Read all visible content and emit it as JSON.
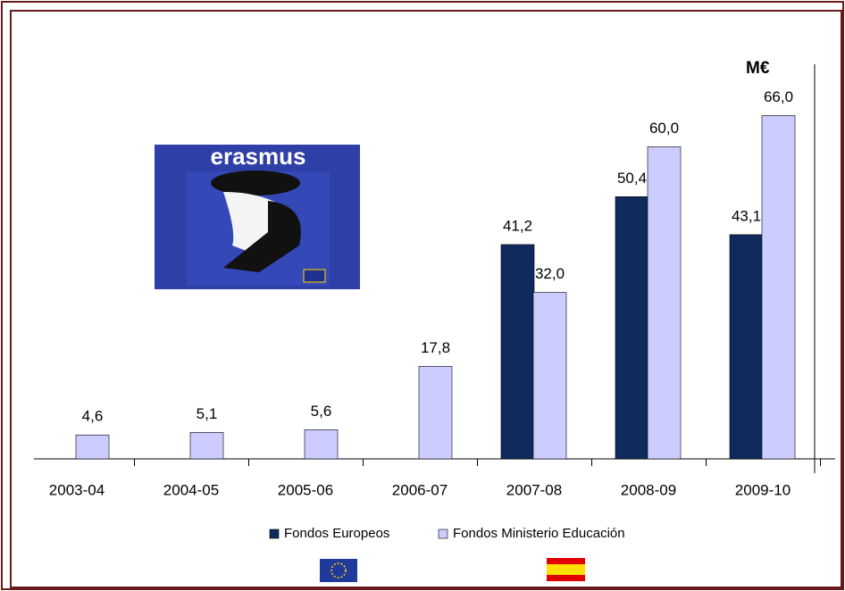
{
  "chart_data": {
    "type": "bar",
    "unit_label": "M€",
    "logo_text": "erasmus",
    "categories": [
      "2003-04",
      "2004-05",
      "2005-06",
      "2006-07",
      "2007-08",
      "2008-09",
      "2009-10"
    ],
    "series": [
      {
        "name": "Fondos Europeos",
        "color": "#0f2a5c",
        "values": [
          null,
          null,
          null,
          null,
          41.2,
          50.4,
          43.1
        ],
        "value_labels": [
          null,
          null,
          null,
          null,
          "41,2",
          "50,4",
          "43,1"
        ]
      },
      {
        "name": "Fondos Ministerio Educación",
        "color": "#ccccff",
        "values": [
          4.6,
          5.1,
          5.6,
          17.8,
          32.0,
          60.0,
          66.0
        ],
        "value_labels": [
          "4,6",
          "5,1",
          "5,6",
          "17,8",
          "32,0",
          "60,0",
          "66,0"
        ]
      }
    ],
    "ylim": [
      0,
      75
    ],
    "legend": "bottom"
  }
}
